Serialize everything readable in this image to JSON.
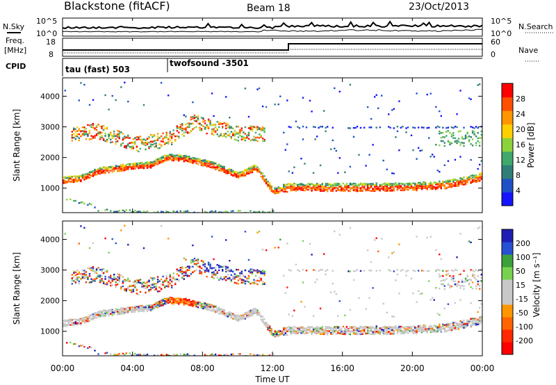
{
  "header": {
    "title": "Blackstone (fitACF)",
    "beam": "Beam 18",
    "date": "23/Oct/2013"
  },
  "left_labels": {
    "nsky": "N.Sky",
    "freq_line1": "Freq.",
    "freq_line2": "[MHz]",
    "cpid": "CPID"
  },
  "right_labels": {
    "nsearch": "N.Search",
    "nave": "Nave"
  },
  "noise_axis": {
    "left_ticks": [
      "10^5",
      "10^0"
    ],
    "right_ticks": [
      "10^5",
      "10^0"
    ]
  },
  "freq_axis": {
    "left_ticks": [
      "18",
      "8"
    ],
    "right_ticks": [
      "60",
      "0"
    ]
  },
  "cpid": {
    "segments": [
      {
        "start_hour": 0,
        "label": "tau (fast) 503"
      },
      {
        "start_hour": 6,
        "label": "twofsound -3501"
      }
    ]
  },
  "chart_data": [
    {
      "type": "heatmap",
      "panel": "power",
      "ylabel": "Slant Range [km]",
      "yticks": [
        1000,
        2000,
        3000,
        4000
      ],
      "ylim": [
        200,
        4600
      ],
      "x_ticks": [
        "00:00",
        "04:00",
        "08:00",
        "12:00",
        "16:00",
        "20:00",
        "00:00"
      ],
      "xlim_hours": [
        0,
        24
      ],
      "colorbar": {
        "label": "Power [dB]",
        "ticks": [
          "4",
          "8",
          "12",
          "16",
          "20",
          "24",
          "28"
        ],
        "range": [
          0,
          32
        ],
        "colors": [
          "#1414ff",
          "#1e50c8",
          "#2f7f78",
          "#3fa86a",
          "#8cd23c",
          "#ffd000",
          "#ff9600",
          "#ff5000",
          "#ff0000"
        ]
      },
      "echo_bands": [
        {
          "name": "ionospheric",
          "points": [
            [
              0,
              1250
            ],
            [
              1,
              1300
            ],
            [
              2,
              1550
            ],
            [
              4,
              1700
            ],
            [
              5,
              1750
            ],
            [
              6,
              2000
            ],
            [
              7,
              1950
            ],
            [
              8.5,
              1750
            ],
            [
              10,
              1400
            ],
            [
              11,
              1650
            ],
            [
              11.5,
              1300
            ],
            [
              12,
              900
            ],
            [
              13,
              1000
            ],
            [
              16,
              1000
            ],
            [
              20,
              1020
            ],
            [
              22,
              1100
            ],
            [
              24,
              1350
            ]
          ]
        },
        {
          "name": "upper",
          "points": [
            [
              0.5,
              2800
            ],
            [
              2,
              2900
            ],
            [
              4,
              2450
            ],
            [
              6,
              2600
            ],
            [
              7.5,
              3200
            ],
            [
              8.5,
              3000
            ],
            [
              10,
              2800
            ],
            [
              11.5,
              2800
            ]
          ]
        },
        {
          "name": "ground",
          "points": [
            [
              0,
              700
            ],
            [
              1.5,
              500
            ],
            [
              2,
              300
            ],
            [
              5,
              250
            ],
            [
              10,
              250
            ],
            [
              12,
              250
            ]
          ]
        }
      ]
    },
    {
      "type": "heatmap",
      "panel": "velocity",
      "ylabel": "Slant Range [km]",
      "yticks": [
        1000,
        2000,
        3000,
        4000
      ],
      "ylim": [
        200,
        4600
      ],
      "x_ticks": [
        "00:00",
        "04:00",
        "08:00",
        "12:00",
        "16:00",
        "20:00",
        "00:00"
      ],
      "xlim_hours": [
        0,
        24
      ],
      "xlabel": "Time UT",
      "colorbar": {
        "label": "Velocity [m s⁻¹]",
        "ticks": [
          "200",
          "100",
          "50",
          "15",
          "-15",
          "-50",
          "-100",
          "-200"
        ],
        "colors": [
          "#1e1eb4",
          "#2850d2",
          "#3ca03c",
          "#78d250",
          "#c8c8c8",
          "#c8c8c8",
          "#ff9600",
          "#ff6400",
          "#ff2800",
          "#ff0000"
        ]
      }
    }
  ]
}
